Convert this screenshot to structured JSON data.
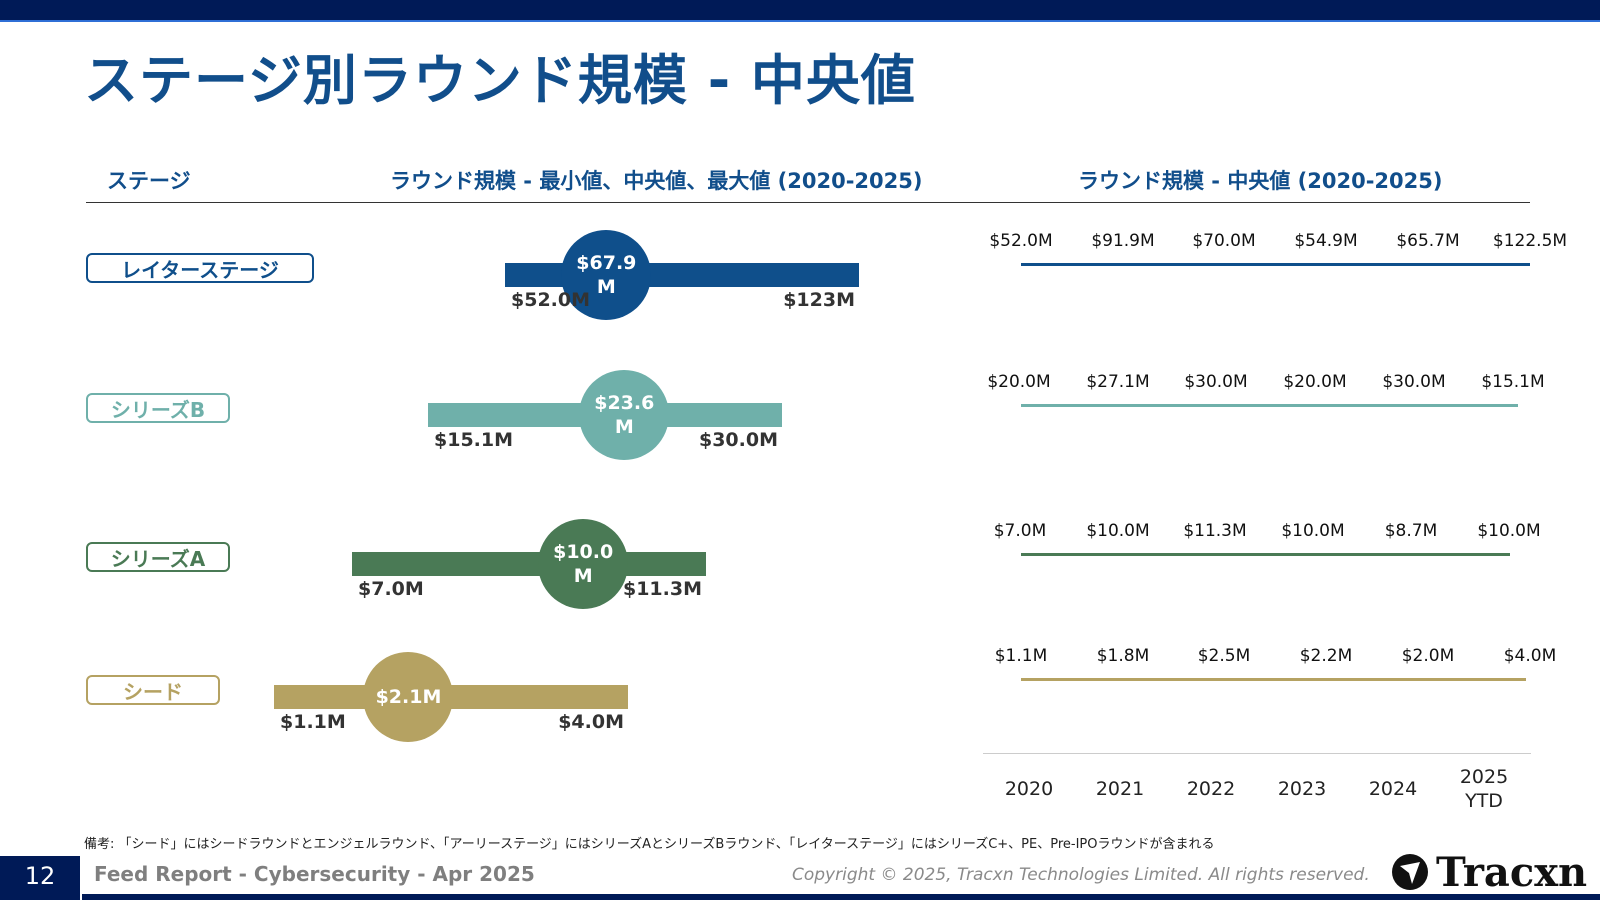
{
  "header": {
    "title": "ステージ別ラウンド規模 - 中央値",
    "col_stage": "ステージ",
    "col_range": "ラウンド規模 - 最小値、中央値、最大値 (2020-2025)",
    "col_trend": "ラウンド規模 - 中央値 (2020-2025)"
  },
  "chart_data": {
    "type": "table",
    "currency_unit": "USD millions",
    "years": [
      "2020",
      "2021",
      "2022",
      "2023",
      "2024",
      "2025\nYTD"
    ],
    "stages": [
      {
        "name": "レイターステージ",
        "color": "#0f4f8b",
        "min": 52.0,
        "median": 67.9,
        "max": 123,
        "min_label": "$52.0M",
        "median_label": "$67.9M",
        "max_label": "$123M",
        "yearly": [
          52.0,
          91.9,
          70.0,
          54.9,
          65.7,
          122.5
        ],
        "yearly_labels": [
          "$52.0M",
          "$91.9M",
          "$70.0M",
          "$54.9M",
          "$65.7M",
          "$122.5M"
        ]
      },
      {
        "name": "シリーズB",
        "color": "#6fb0aa",
        "min": 15.1,
        "median": 23.6,
        "max": 30.0,
        "min_label": "$15.1M",
        "median_label": "$23.6M",
        "max_label": "$30.0M",
        "yearly": [
          20.0,
          27.1,
          30.0,
          20.0,
          30.0,
          15.1
        ],
        "yearly_labels": [
          "$20.0M",
          "$27.1M",
          "$30.0M",
          "$20.0M",
          "$30.0M",
          "$15.1M"
        ]
      },
      {
        "name": "シリーズA",
        "color": "#4a7a55",
        "min": 7.0,
        "median": 10.0,
        "max": 11.3,
        "min_label": "$7.0M",
        "median_label": "$10.0M",
        "max_label": "$11.3M",
        "yearly": [
          7.0,
          10.0,
          11.3,
          10.0,
          8.7,
          10.0
        ],
        "yearly_labels": [
          "$7.0M",
          "$10.0M",
          "$11.3M",
          "$10.0M",
          "$8.7M",
          "$10.0M"
        ]
      },
      {
        "name": "シード",
        "color": "#b5a262",
        "min": 1.1,
        "median": 2.1,
        "max": 4.0,
        "min_label": "$1.1M",
        "median_label": "$2.1M",
        "max_label": "$4.0M",
        "yearly": [
          1.1,
          1.8,
          2.5,
          2.2,
          2.0,
          4.0
        ],
        "yearly_labels": [
          "$1.1M",
          "$1.8M",
          "$2.5M",
          "$2.2M",
          "$2.0M",
          "$4.0M"
        ]
      }
    ]
  },
  "note": "備考: 「シード」にはシードラウンドとエンジェルラウンド、「アーリーステージ」にはシリーズAとシリーズBラウンド、「レイターステージ」にはシリーズC+、PE、Pre-IPOラウンドが含まれる",
  "footer": {
    "page_number": "12",
    "report_title": "Feed Report - Cybersecurity - Apr 2025",
    "copyright": "Copyright © 2025, Tracxn Technologies Limited. All rights reserved.",
    "logo_text": "Tracxn"
  }
}
